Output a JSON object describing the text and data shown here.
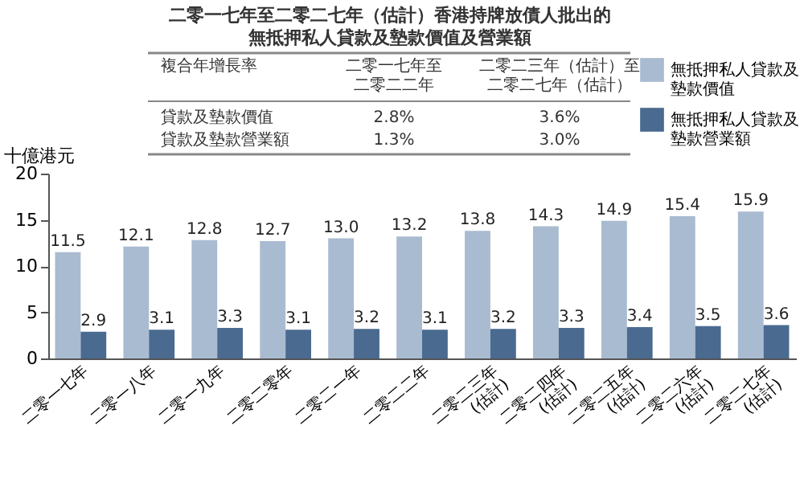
{
  "chart_data": {
    "type": "bar",
    "title": "二零一七年至二零二七年（估計）香港持牌放債人批出的無抵押私人貸款及墊款價值及營業額",
    "ylabel": "十億港元",
    "categories": [
      "二零一七年",
      "二零一八年",
      "二零一九年",
      "二零二零年",
      "二零二一年",
      "二零二二年",
      "二零二三年\n(估計)",
      "二零二四年\n(估計)",
      "二零二五年\n(估計)",
      "二零二六年\n(估計)",
      "二零二七年\n(估計)"
    ],
    "series": [
      {
        "name": "無抵押私人貸款及墊款價值",
        "color": "#a9bbd0",
        "values": [
          11.5,
          12.1,
          12.8,
          12.7,
          13.0,
          13.2,
          13.8,
          14.3,
          14.9,
          15.4,
          15.9
        ],
        "value_labels": [
          "11.5",
          "12.1",
          "12.8",
          "12.7",
          "13.0",
          "13.2",
          "13.8",
          "14.3",
          "14.9",
          "15.4",
          "15.9"
        ]
      },
      {
        "name": "無抵押私人貸款及墊款營業額",
        "color": "#4a6a90",
        "values": [
          2.9,
          3.1,
          3.3,
          3.1,
          3.2,
          3.1,
          3.2,
          3.3,
          3.4,
          3.5,
          3.6
        ],
        "value_labels": [
          "2.9",
          "3.1",
          "3.3",
          "3.1",
          "3.2",
          "3.1",
          "3.2",
          "3.3",
          "3.4",
          "3.5",
          "3.6"
        ]
      }
    ],
    "ylim": [
      0,
      20
    ],
    "yticks": [
      0,
      5,
      10,
      15,
      20
    ],
    "grid": false,
    "legend": "top right",
    "annotations": [
      "複合年增長率",
      "二零一七年至二零二二年",
      "二零二三年（估計）至二零二七年（估計）",
      "貸款及墊款價值",
      "2.8%",
      "3.6%",
      "貸款及墊款營業額",
      "1.3%",
      "3.0%"
    ]
  }
}
